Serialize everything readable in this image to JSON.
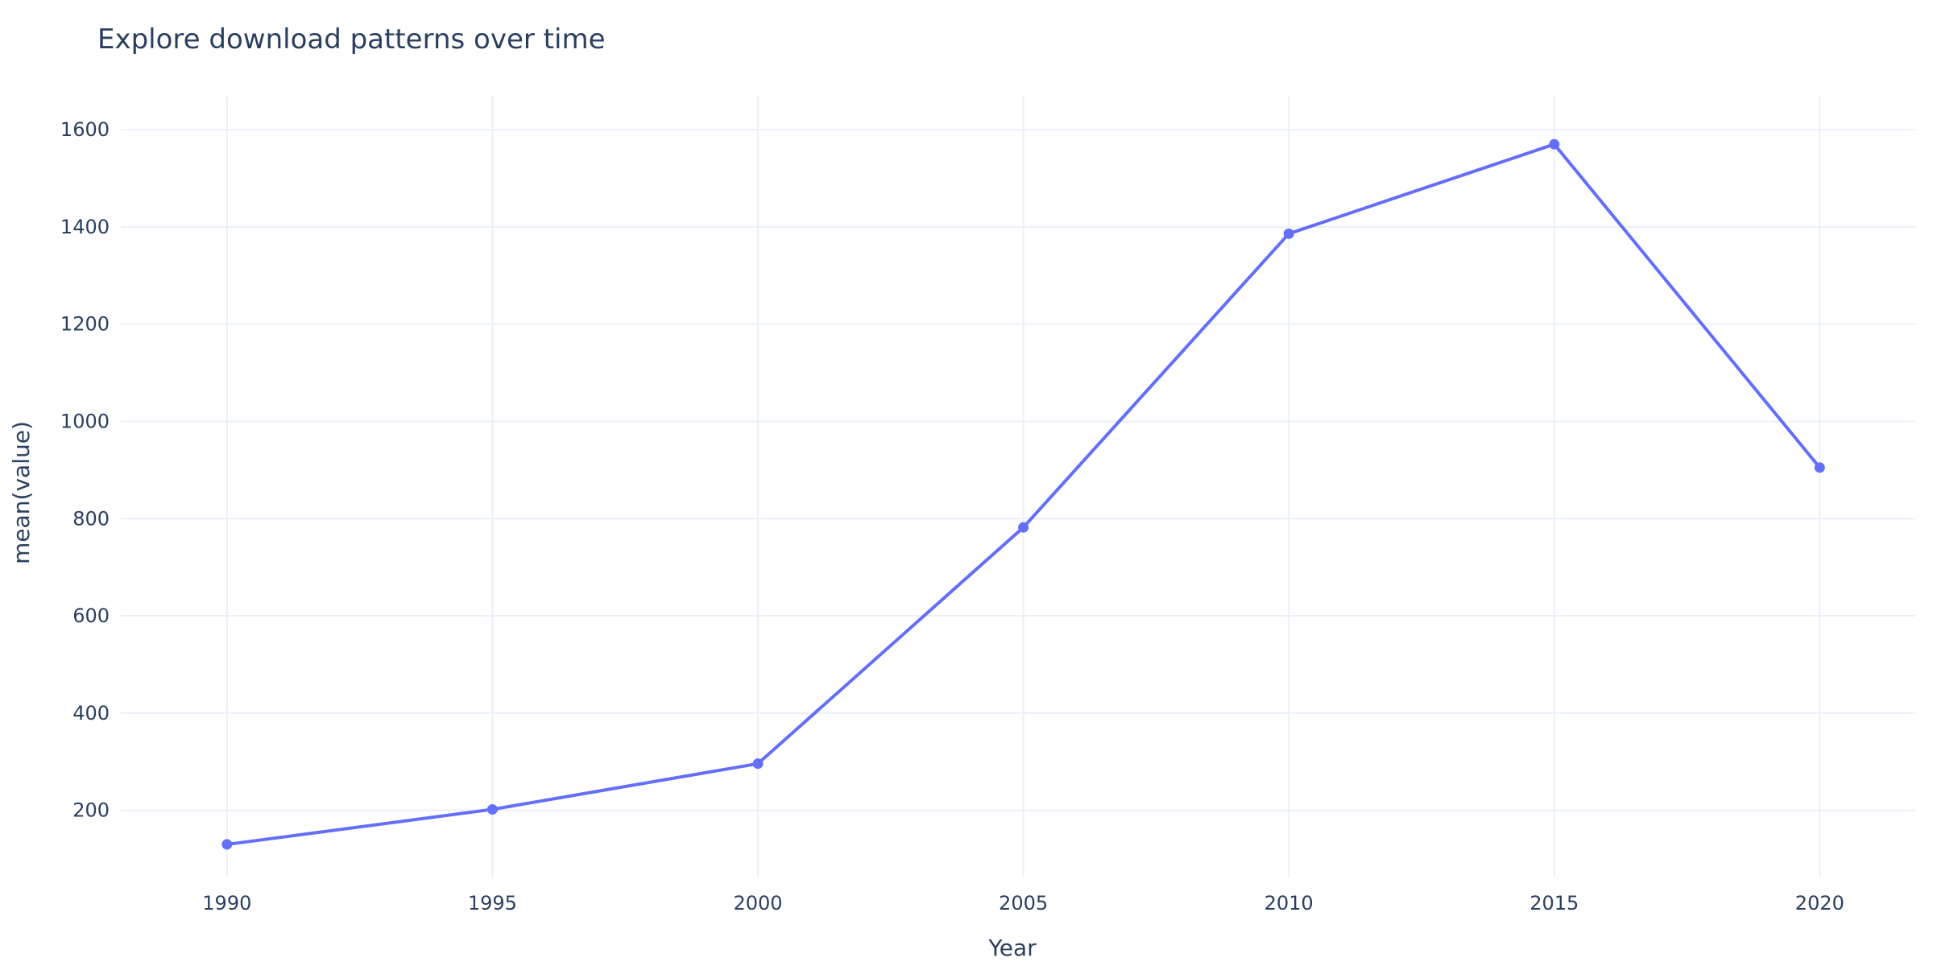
{
  "chart_data": {
    "type": "line",
    "title": "Explore download patterns over time",
    "xlabel": "Year",
    "ylabel": "mean(value)",
    "x": [
      1990,
      1995,
      2000,
      2005,
      2010,
      2015,
      2020
    ],
    "series": [
      {
        "values": [
          130,
          202,
          296,
          782,
          1386,
          1570,
          905
        ],
        "color": "#636efa"
      }
    ],
    "xticks": [
      "1990",
      "1995",
      "2000",
      "2005",
      "2010",
      "2015",
      "2020"
    ],
    "yticks": [
      "200",
      "400",
      "600",
      "800",
      "1000",
      "1200",
      "1400",
      "1600"
    ],
    "xlim": [
      1988,
      2021.8
    ],
    "ylim": [
      62,
      1668
    ],
    "grid": true,
    "legend": "none",
    "colors": {
      "gridline": "#ebf0f8",
      "text": "#2a3f5f",
      "background": "#ffffff"
    }
  }
}
